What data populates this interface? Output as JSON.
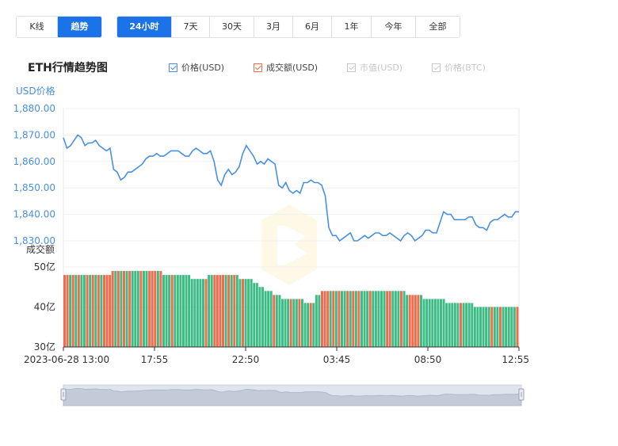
{
  "view_tabs": [
    {
      "label": "K线",
      "active": false
    },
    {
      "label": "趋势",
      "active": true
    }
  ],
  "range_tabs": [
    {
      "label": "24小时",
      "active": true
    },
    {
      "label": "7天",
      "active": false
    },
    {
      "label": "30天",
      "active": false
    },
    {
      "label": "3月",
      "active": false
    },
    {
      "label": "6月",
      "active": false
    },
    {
      "label": "1年",
      "active": false
    },
    {
      "label": "今年",
      "active": false
    },
    {
      "label": "全部",
      "active": false
    }
  ],
  "chart_title": "ETH行情趋势图",
  "legend": [
    {
      "label": "价格(USD)",
      "checked": true,
      "color": "#4a90e2"
    },
    {
      "label": "成交额(USD)",
      "checked": true,
      "color": "#ef6c4c"
    },
    {
      "label": "市值(USD)",
      "checked": false,
      "color": "#c8c8c8"
    },
    {
      "label": "价格(BTC)",
      "checked": false,
      "color": "#c8c8c8"
    }
  ],
  "colors": {
    "price_line": "#4a90e2",
    "volume_up": "#ef6c4c",
    "volume_down": "#3dbb85",
    "axis_label_blue": "#4a90e2",
    "axis_text": "#333333"
  },
  "chart_data": {
    "type": "line",
    "x_tick_labels": [
      "2023-06-28 13:00",
      "17:55",
      "22:50",
      "03:45",
      "08:50",
      "12:55"
    ],
    "price": {
      "axis_label": "USD价格",
      "ticks": [
        "1,880.00",
        "1,870.00",
        "1,860.00",
        "1,850.00",
        "1,840.00",
        "1,830.00"
      ],
      "ylim": [
        1830,
        1880
      ],
      "values": [
        1869,
        1865,
        1866,
        1868,
        1870,
        1869,
        1866,
        1867,
        1867,
        1868,
        1866,
        1865,
        1864,
        1865,
        1857,
        1856,
        1853,
        1854,
        1856,
        1856,
        1857,
        1858,
        1859,
        1861,
        1862,
        1862,
        1863,
        1862,
        1862,
        1863,
        1864,
        1864,
        1864,
        1863,
        1862,
        1862,
        1864,
        1865,
        1864,
        1863,
        1863,
        1864,
        1860,
        1853,
        1851,
        1855,
        1857,
        1855,
        1856,
        1858,
        1863,
        1866,
        1864,
        1862,
        1859,
        1860,
        1859,
        1861,
        1860,
        1859,
        1851,
        1850,
        1852,
        1849,
        1848,
        1849,
        1848,
        1852,
        1852,
        1853,
        1852,
        1852,
        1851,
        1847,
        1835,
        1832,
        1832,
        1830,
        1831,
        1832,
        1833,
        1830,
        1830,
        1831,
        1832,
        1831,
        1832,
        1833,
        1833,
        1832,
        1832,
        1833,
        1832,
        1831,
        1830,
        1832,
        1833,
        1832,
        1830,
        1831,
        1832,
        1834,
        1834,
        1833,
        1833,
        1837,
        1841,
        1840,
        1840,
        1838,
        1838,
        1838,
        1838,
        1839,
        1839,
        1836,
        1835,
        1835,
        1834,
        1837,
        1838,
        1838,
        1839,
        1840,
        1839,
        1839,
        1841,
        1841
      ]
    },
    "volume": {
      "axis_label": "成交额",
      "ticks": [
        "50亿",
        "40亿",
        "30亿"
      ],
      "ylim": [
        30,
        50
      ],
      "values": [
        48,
        48,
        48,
        48,
        48,
        48,
        48,
        48,
        48,
        48,
        48,
        48,
        48,
        48,
        48,
        48,
        48,
        49,
        49,
        49,
        49,
        49,
        49,
        49,
        49,
        49,
        49,
        49,
        49,
        49,
        49,
        49,
        49,
        49,
        49,
        48,
        48,
        48,
        48,
        48,
        48,
        48,
        48,
        48,
        48,
        47,
        47,
        47,
        47,
        47,
        47,
        48,
        48,
        48,
        48,
        48,
        48,
        48,
        48,
        48,
        48,
        48,
        47,
        47,
        47,
        47,
        47,
        46,
        46,
        45,
        45,
        44,
        44,
        44,
        43,
        43,
        43,
        42,
        42,
        42,
        42,
        42,
        42,
        42,
        42,
        41,
        41,
        41,
        41,
        43,
        43,
        44,
        44,
        44,
        44,
        44,
        44,
        44,
        44,
        44,
        44,
        44,
        44,
        44,
        44,
        44,
        44,
        44,
        44,
        44,
        44,
        44,
        44,
        44,
        44,
        44,
        44,
        44,
        44,
        44,
        44,
        43,
        43,
        43,
        43,
        43,
        43,
        42,
        42,
        42,
        42,
        42,
        42,
        42,
        42,
        41,
        41,
        41,
        41,
        41,
        41,
        41,
        41,
        41,
        41,
        40,
        40,
        40,
        40,
        40,
        40,
        40,
        40,
        40,
        40,
        40,
        40,
        40,
        40,
        40,
        40
      ],
      "up": [
        1,
        1,
        0,
        1,
        0,
        1,
        0,
        0,
        1,
        0,
        1,
        0,
        1,
        0,
        1,
        1,
        1,
        1,
        0,
        1,
        0,
        1,
        0,
        1,
        0,
        0,
        0,
        1,
        0,
        0,
        1,
        1,
        1,
        0,
        1,
        0,
        0,
        0,
        1,
        0,
        0,
        0,
        0,
        0,
        0,
        0,
        0,
        0,
        0,
        0,
        1,
        0,
        0,
        1,
        1,
        1,
        1,
        0,
        1,
        0,
        1,
        0,
        0,
        1,
        0,
        0,
        0,
        0,
        0,
        0,
        0,
        0,
        0,
        0,
        1,
        0,
        0,
        0,
        0,
        0,
        1,
        0,
        0,
        1,
        0,
        0,
        0,
        1,
        0,
        0,
        0,
        1,
        1,
        1,
        0,
        1,
        0,
        1,
        0,
        0,
        1,
        0,
        1,
        0,
        1,
        0,
        0,
        0,
        1,
        0,
        0,
        0,
        0,
        0,
        1,
        1,
        0,
        0,
        0,
        1,
        0,
        0,
        1,
        1,
        1,
        1,
        0,
        0,
        0,
        0,
        0,
        0,
        0,
        0,
        0,
        0,
        0,
        0,
        0,
        0,
        1,
        0,
        0,
        0,
        0,
        0,
        0,
        0,
        0,
        0,
        0,
        1,
        0,
        0,
        1,
        0,
        0,
        0,
        0,
        0,
        1,
        0
      ]
    }
  }
}
